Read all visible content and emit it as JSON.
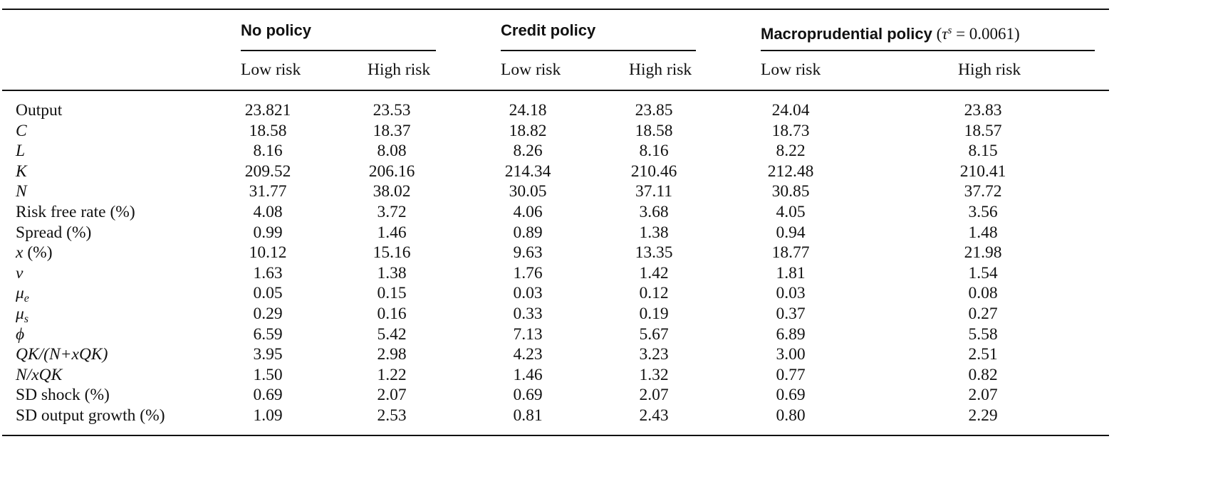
{
  "groups": [
    {
      "label": "No policy",
      "extra": null
    },
    {
      "label": "Credit policy",
      "extra": null
    },
    {
      "label": "Macroprudential policy",
      "extra": {
        "open": "(",
        "tau": "τ",
        "tau_sup": "s",
        "rest": " = 0.0061)"
      }
    }
  ],
  "subheaders": [
    "Low risk",
    "High risk",
    "Low risk",
    "High risk",
    "Low risk",
    "High risk"
  ],
  "rows": [
    {
      "label": "Output",
      "italic": false,
      "label_html": null,
      "values": [
        "23.821",
        "23.53",
        "24.18",
        "23.85",
        "24.04",
        "23.83"
      ]
    },
    {
      "label": "C",
      "italic": true,
      "label_html": null,
      "values": [
        "18.58",
        "18.37",
        "18.82",
        "18.58",
        "18.73",
        "18.57"
      ]
    },
    {
      "label": "L",
      "italic": true,
      "label_html": null,
      "values": [
        "8.16",
        "8.08",
        "8.26",
        "8.16",
        "8.22",
        "8.15"
      ]
    },
    {
      "label": "K",
      "italic": true,
      "label_html": null,
      "values": [
        "209.52",
        "206.16",
        "214.34",
        "210.46",
        "212.48",
        "210.41"
      ]
    },
    {
      "label": "N",
      "italic": true,
      "label_html": null,
      "values": [
        "31.77",
        "38.02",
        "30.05",
        "37.11",
        "30.85",
        "37.72"
      ]
    },
    {
      "label": "Risk free rate (%)",
      "italic": false,
      "label_html": null,
      "values": [
        "4.08",
        "3.72",
        "4.06",
        "3.68",
        "4.05",
        "3.56"
      ]
    },
    {
      "label": "Spread (%)",
      "italic": false,
      "label_html": null,
      "values": [
        "0.99",
        "1.46",
        "0.89",
        "1.38",
        "0.94",
        "1.48"
      ]
    },
    {
      "label": "x (%)",
      "italic": false,
      "label_html": "<i>x</i> (%)",
      "values": [
        "10.12",
        "15.16",
        "9.63",
        "13.35",
        "18.77",
        "21.98"
      ]
    },
    {
      "label": "ν",
      "italic": true,
      "label_html": null,
      "values": [
        "1.63",
        "1.38",
        "1.76",
        "1.42",
        "1.81",
        "1.54"
      ]
    },
    {
      "label": "μe",
      "italic": false,
      "label_html": "<i>μ</i><span class=\"sub\">e</span>",
      "values": [
        "0.05",
        "0.15",
        "0.03",
        "0.12",
        "0.03",
        "0.08"
      ]
    },
    {
      "label": "μs",
      "italic": false,
      "label_html": "<i>μ</i><span class=\"sub\">s</span>",
      "values": [
        "0.29",
        "0.16",
        "0.33",
        "0.19",
        "0.37",
        "0.27"
      ]
    },
    {
      "label": "ϕ",
      "italic": true,
      "label_html": null,
      "values": [
        "6.59",
        "5.42",
        "7.13",
        "5.67",
        "6.89",
        "5.58"
      ]
    },
    {
      "label": "QK/(N+xQK)",
      "italic": true,
      "label_html": null,
      "values": [
        "3.95",
        "2.98",
        "4.23",
        "3.23",
        "3.00",
        "2.51"
      ]
    },
    {
      "label": "N/xQK",
      "italic": true,
      "label_html": null,
      "values": [
        "1.50",
        "1.22",
        "1.46",
        "1.32",
        "0.77",
        "0.82"
      ]
    },
    {
      "label": "SD shock (%)",
      "italic": false,
      "label_html": null,
      "values": [
        "0.69",
        "2.07",
        "0.69",
        "2.07",
        "0.69",
        "2.07"
      ]
    },
    {
      "label": "SD output growth (%)",
      "italic": false,
      "label_html": null,
      "values": [
        "1.09",
        "2.53",
        "0.81",
        "2.43",
        "0.80",
        "2.29"
      ]
    }
  ]
}
